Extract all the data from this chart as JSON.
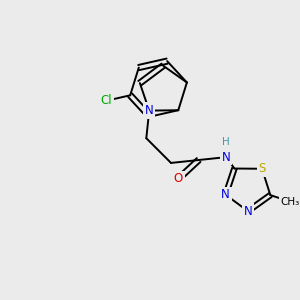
{
  "background_color": "#ebebeb",
  "atom_colors": {
    "C": "#000000",
    "N": "#0000dd",
    "O": "#dd0000",
    "S": "#bbaa00",
    "Cl": "#00aa00",
    "H": "#4499aa"
  },
  "bond_color": "#000000",
  "figsize": [
    3.0,
    3.0
  ],
  "dpi": 100
}
